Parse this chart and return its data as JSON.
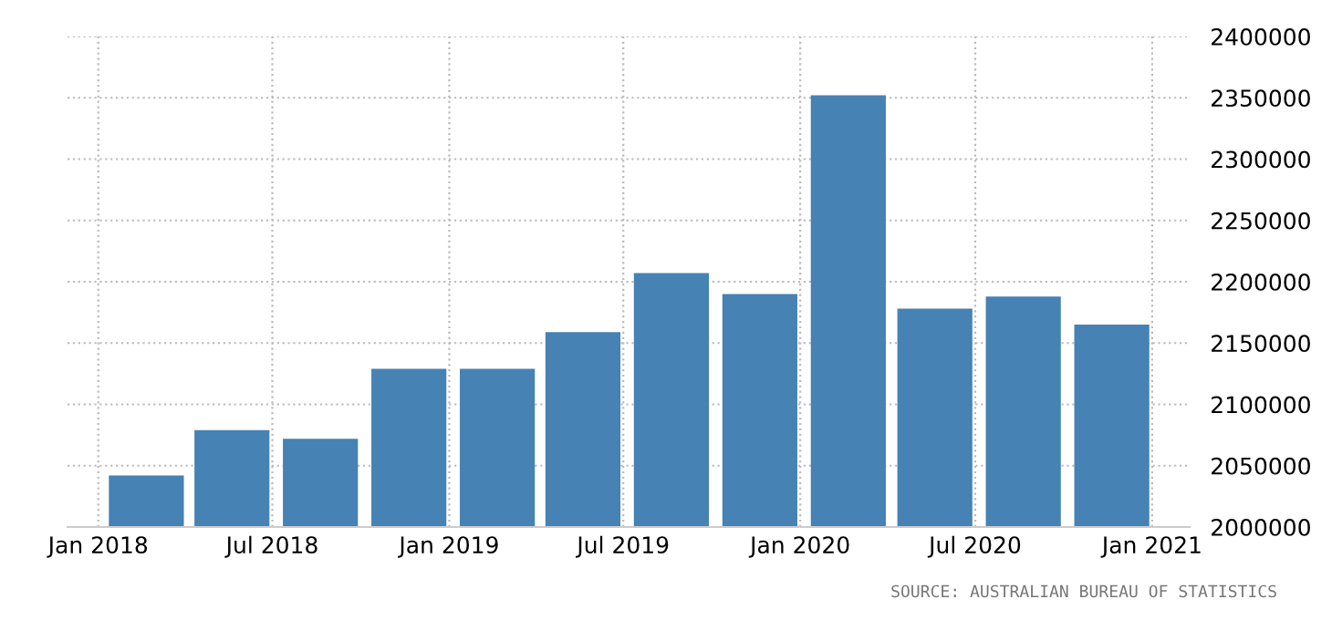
{
  "chart_data": {
    "type": "bar",
    "x": [
      "2018-02-20",
      "2018-05-20",
      "2018-08-20",
      "2018-11-20",
      "2019-02-20",
      "2019-05-20",
      "2019-08-20",
      "2019-11-20",
      "2020-02-20",
      "2020-05-20",
      "2020-08-20",
      "2020-11-20"
    ],
    "values": [
      2042000,
      2079000,
      2072000,
      2129000,
      2129000,
      2159000,
      2207000,
      2190000,
      2352000,
      2178000,
      2188000,
      2165000
    ],
    "color": "#4682b4",
    "xlim": [
      "2017-11-30",
      "2021-02-09"
    ],
    "xticks": [
      {
        "value": "2018-01-01",
        "label": "Jan 2018"
      },
      {
        "value": "2018-07-01",
        "label": "Jul 2018"
      },
      {
        "value": "2019-01-01",
        "label": "Jan 2019"
      },
      {
        "value": "2019-07-01",
        "label": "Jul 2019"
      },
      {
        "value": "2020-01-01",
        "label": "Jan 2020"
      },
      {
        "value": "2020-07-01",
        "label": "Jul 2020"
      },
      {
        "value": "2021-01-01",
        "label": "Jan 2021"
      }
    ],
    "ylim": [
      2000000,
      2400000
    ],
    "yticks": [
      2000000,
      2050000,
      2100000,
      2150000,
      2200000,
      2250000,
      2300000,
      2350000,
      2400000
    ],
    "grid": true,
    "legend": false,
    "annotations": [
      "SOURCE: AUSTRALIAN BUREAU OF STATISTICS"
    ]
  }
}
